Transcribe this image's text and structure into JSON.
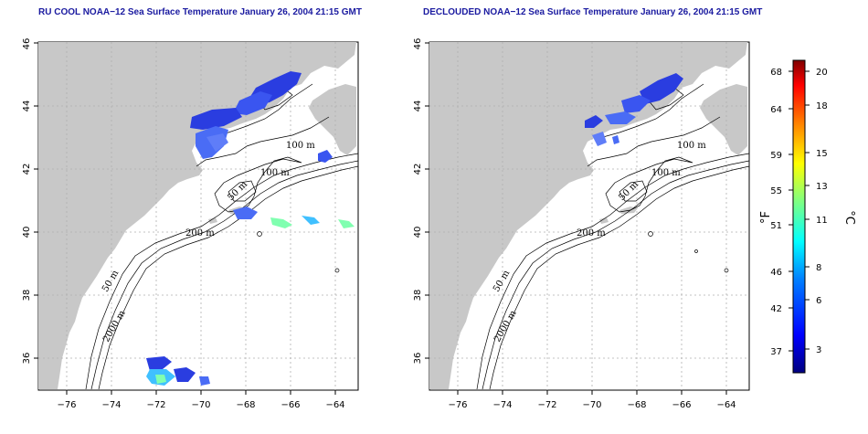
{
  "panels": [
    {
      "id": "left",
      "title": "RU COOL NOAA−12 Sea Surface Temperature January 26, 2004 21:15 GMT",
      "contour_labels": [
        "100 m",
        "100 m",
        "50 m",
        "200 m",
        "50 m",
        "2000 m"
      ]
    },
    {
      "id": "right",
      "title": "DECLOUDED NOAA−12 Sea Surface Temperature January 26, 2004 21:15 GMT",
      "contour_labels": [
        "100 m",
        "100 m",
        "50 m",
        "200 m",
        "50 m",
        "2000 m"
      ]
    }
  ],
  "axes": {
    "x_ticks": [
      "−76",
      "−74",
      "−72",
      "−70",
      "−68",
      "−66",
      "−64"
    ],
    "y_ticks": [
      "36",
      "38",
      "40",
      "42",
      "44",
      "46"
    ],
    "xlim": [
      -77,
      -63
    ],
    "ylim": [
      35,
      46
    ],
    "grid": true
  },
  "colorbar": {
    "fahrenheit_ticks": [
      "37",
      "42",
      "46",
      "51",
      "55",
      "59",
      "64",
      "68"
    ],
    "celsius_ticks": [
      "3",
      "6",
      "8",
      "11",
      "13",
      "15",
      "18",
      "20"
    ],
    "f_unit": "°F",
    "c_unit": "°C",
    "colors": [
      "#00007f",
      "#0000ff",
      "#0080ff",
      "#00ffff",
      "#80ff80",
      "#ffff00",
      "#ff8000",
      "#ff0000",
      "#7f0000"
    ]
  },
  "colors": {
    "land": "#c8c8c8",
    "title": "#1a1aa0",
    "sst_blue": "#2a3de0"
  }
}
